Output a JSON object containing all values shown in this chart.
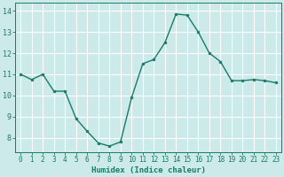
{
  "x": [
    0,
    1,
    2,
    3,
    4,
    5,
    6,
    7,
    8,
    9,
    10,
    11,
    12,
    13,
    14,
    15,
    16,
    17,
    18,
    19,
    20,
    21,
    22,
    23
  ],
  "y": [
    11.0,
    10.75,
    11.0,
    10.2,
    10.2,
    8.9,
    8.3,
    7.75,
    7.6,
    7.8,
    9.9,
    11.5,
    11.7,
    12.5,
    13.85,
    13.8,
    13.0,
    12.0,
    11.6,
    10.7,
    10.7,
    10.75,
    10.7,
    10.6
  ],
  "line_color": "#1a7a6a",
  "marker": "o",
  "marker_size": 2.0,
  "bg_color": "#cceaea",
  "grid_color": "#ffffff",
  "xlabel": "Humidex (Indice chaleur)",
  "ylim": [
    7.3,
    14.4
  ],
  "xlim": [
    -0.5,
    23.5
  ],
  "yticks": [
    8,
    9,
    10,
    11,
    12,
    13,
    14
  ],
  "xticks": [
    0,
    1,
    2,
    3,
    4,
    5,
    6,
    7,
    8,
    9,
    10,
    11,
    12,
    13,
    14,
    15,
    16,
    17,
    18,
    19,
    20,
    21,
    22,
    23
  ],
  "tick_fontsize": 5.5,
  "xlabel_fontsize": 6.5,
  "linewidth": 1.0
}
